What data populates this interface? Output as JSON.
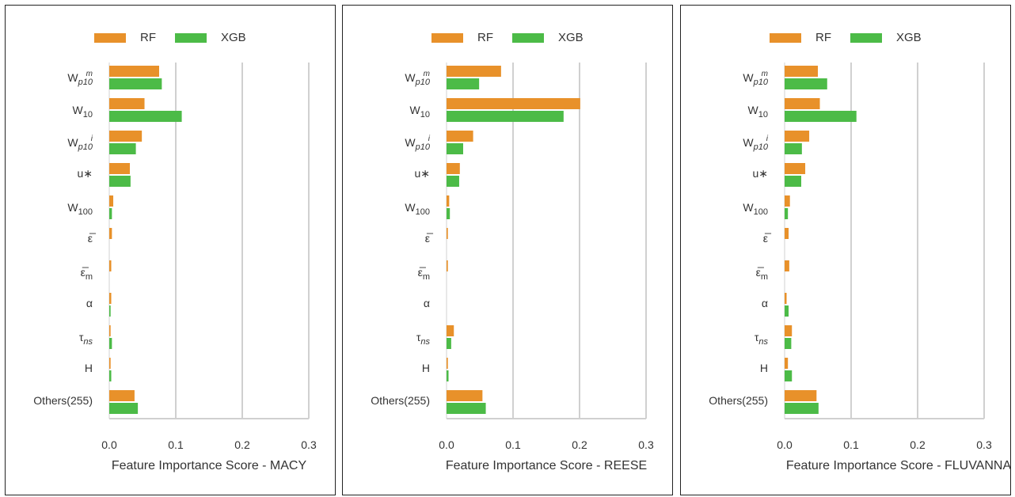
{
  "legend": {
    "rf_label": "RF",
    "xgb_label": "XGB"
  },
  "colors": {
    "rf": "#E8912A",
    "xgb": "#4CBB47",
    "grid": "#d0d0d0"
  },
  "features": [
    {
      "key": "Wm_p10",
      "base": "W",
      "sup": "m",
      "sub": "p10"
    },
    {
      "key": "W10",
      "base": "W",
      "sup": "",
      "sub": "10"
    },
    {
      "key": "Wi_p10",
      "base": "W",
      "sup": "i",
      "sub": "p10"
    },
    {
      "key": "u_star",
      "base": "u∗",
      "sup": "",
      "sub": ""
    },
    {
      "key": "W100",
      "base": "W",
      "sup": "",
      "sub": "100"
    },
    {
      "key": "eps_bar",
      "base": "ε̅",
      "sup": "",
      "sub": ""
    },
    {
      "key": "eps_bar_m",
      "base": "ε̅",
      "sup": "",
      "sub": "m"
    },
    {
      "key": "alpha",
      "base": "α",
      "sup": "",
      "sub": ""
    },
    {
      "key": "tau_ns",
      "base": "τ",
      "sup": "",
      "sub": "ns"
    },
    {
      "key": "H",
      "base": "H",
      "sup": "",
      "sub": ""
    },
    {
      "key": "others",
      "base": "Others(255)",
      "sup": "",
      "sub": ""
    }
  ],
  "chart_data": [
    {
      "type": "bar",
      "orientation": "horizontal",
      "xlabel": "Feature Importance Score - MACY",
      "xlim": [
        0,
        0.3
      ],
      "xticks": [
        "0.0",
        "0.1",
        "0.2",
        "0.3"
      ],
      "grid": true,
      "legend_position": "top",
      "series": [
        {
          "name": "RF",
          "values": [
            0.075,
            0.053,
            0.049,
            0.031,
            0.006,
            0.004,
            0.003,
            0.003,
            0.002,
            0.002,
            0.038
          ]
        },
        {
          "name": "XGB",
          "values": [
            0.079,
            0.109,
            0.04,
            0.032,
            0.004,
            0.0,
            0.0,
            0.002,
            0.004,
            0.003,
            0.043
          ]
        }
      ]
    },
    {
      "type": "bar",
      "orientation": "horizontal",
      "xlabel": "Feature Importance Score - REESE",
      "xlim": [
        0,
        0.3
      ],
      "xticks": [
        "0.0",
        "0.1",
        "0.2",
        "0.3"
      ],
      "grid": true,
      "legend_position": "top",
      "series": [
        {
          "name": "RF",
          "values": [
            0.082,
            0.201,
            0.04,
            0.02,
            0.004,
            0.002,
            0.002,
            0.0,
            0.011,
            0.002,
            0.054
          ]
        },
        {
          "name": "XGB",
          "values": [
            0.049,
            0.176,
            0.025,
            0.019,
            0.005,
            0.0,
            0.0,
            0.0,
            0.007,
            0.003,
            0.059
          ]
        }
      ]
    },
    {
      "type": "bar",
      "orientation": "horizontal",
      "xlabel": "Feature Importance Score - FLUVANNA",
      "xlim": [
        0,
        0.3
      ],
      "xticks": [
        "0.0",
        "0.1",
        "0.2",
        "0.3"
      ],
      "grid": true,
      "legend_position": "top",
      "series": [
        {
          "name": "RF",
          "values": [
            0.05,
            0.053,
            0.037,
            0.031,
            0.008,
            0.006,
            0.007,
            0.003,
            0.011,
            0.005,
            0.048
          ]
        },
        {
          "name": "XGB",
          "values": [
            0.064,
            0.108,
            0.026,
            0.025,
            0.005,
            0.0,
            0.0,
            0.006,
            0.01,
            0.011,
            0.051
          ]
        }
      ]
    }
  ]
}
